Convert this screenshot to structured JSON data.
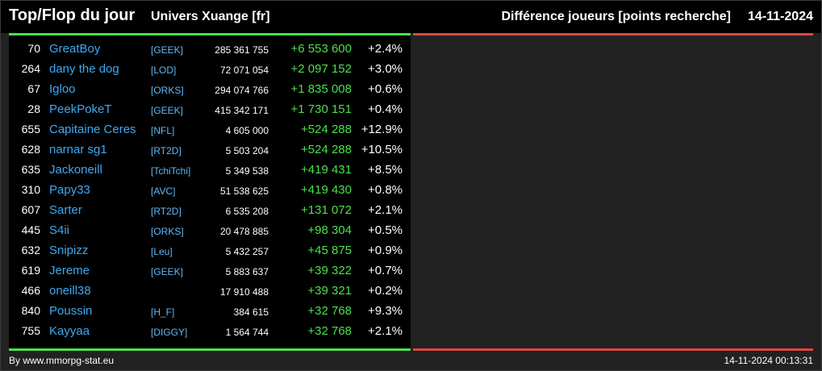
{
  "header": {
    "title": "Top/Flop du jour",
    "universe": "Univers Xuange [fr]",
    "metric": "Différence joueurs [points recherche]",
    "date": "14-11-2024"
  },
  "colors": {
    "gain_bar": "#4be04b",
    "loss_bar": "#e0453f",
    "player_name": "#3fa8f0",
    "gain_text": "#4be04b"
  },
  "top": [
    {
      "rank": "70",
      "name": "GreatBoy",
      "alliance": "[GEEK]",
      "points": "285 361 755",
      "diff": "+6 553 600",
      "pct": "+2.4%"
    },
    {
      "rank": "264",
      "name": "dany the dog",
      "alliance": "[LOD]",
      "points": "72 071 054",
      "diff": "+2 097 152",
      "pct": "+3.0%"
    },
    {
      "rank": "67",
      "name": "Igloo",
      "alliance": "[ORKS]",
      "points": "294 074 766",
      "diff": "+1 835 008",
      "pct": "+0.6%"
    },
    {
      "rank": "28",
      "name": "PeekPokeT",
      "alliance": "[GEEK]",
      "points": "415 342 171",
      "diff": "+1 730 151",
      "pct": "+0.4%"
    },
    {
      "rank": "655",
      "name": "Capitaine Ceres",
      "alliance": "[NFL]",
      "points": "4 605 000",
      "diff": "+524 288",
      "pct": "+12.9%"
    },
    {
      "rank": "628",
      "name": "narnar sg1",
      "alliance": "[RT2D]",
      "points": "5 503 204",
      "diff": "+524 288",
      "pct": "+10.5%"
    },
    {
      "rank": "635",
      "name": "Jackoneill",
      "alliance": "[TchiTchi]",
      "points": "5 349 538",
      "diff": "+419 431",
      "pct": "+8.5%"
    },
    {
      "rank": "310",
      "name": "Papy33",
      "alliance": "[AVC]",
      "points": "51 538 625",
      "diff": "+419 430",
      "pct": "+0.8%"
    },
    {
      "rank": "607",
      "name": "Sarter",
      "alliance": "[RT2D]",
      "points": "6 535 208",
      "diff": "+131 072",
      "pct": "+2.1%"
    },
    {
      "rank": "445",
      "name": "S4ii",
      "alliance": "[ORKS]",
      "points": "20 478 885",
      "diff": "+98 304",
      "pct": "+0.5%"
    },
    {
      "rank": "632",
      "name": "Snipizz",
      "alliance": "[Leu]",
      "points": "5 432 257",
      "diff": "+45 875",
      "pct": "+0.9%"
    },
    {
      "rank": "619",
      "name": "Jereme",
      "alliance": "[GEEK]",
      "points": "5 883 637",
      "diff": "+39 322",
      "pct": "+0.7%"
    },
    {
      "rank": "466",
      "name": "oneill38",
      "alliance": "",
      "points": "17 910 488",
      "diff": "+39 321",
      "pct": "+0.2%"
    },
    {
      "rank": "840",
      "name": "Poussin",
      "alliance": "[H_F]",
      "points": "384 615",
      "diff": "+32 768",
      "pct": "+9.3%"
    },
    {
      "rank": "755",
      "name": "Kayyaa",
      "alliance": "[DIGGY]",
      "points": "1 564 744",
      "diff": "+32 768",
      "pct": "+2.1%"
    }
  ],
  "footer": {
    "source": "By www.mmorpg-stat.eu",
    "generated": "14-11-2024 00:13:31"
  }
}
